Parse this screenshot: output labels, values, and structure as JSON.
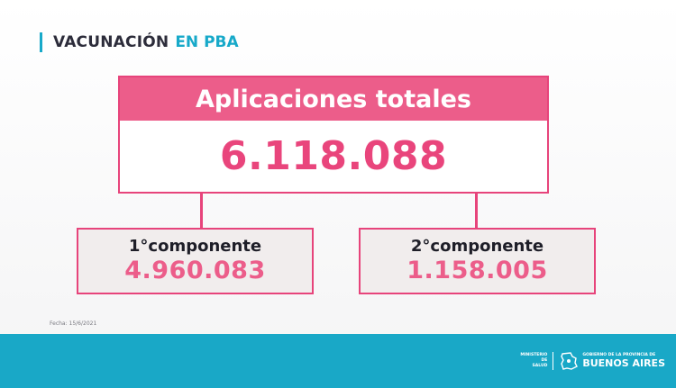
{
  "header": {
    "title_main": "VACUNACIÓN",
    "title_highlight": "EN PBA"
  },
  "total": {
    "label": "Aplicaciones totales",
    "value": "6.118.088"
  },
  "components": [
    {
      "label": "1°componente",
      "value": "4.960.083"
    },
    {
      "label": "2°componente",
      "value": "1.158.005"
    }
  ],
  "note": {
    "date": "Fecha: 15/6/2021"
  },
  "footer": {
    "ministry_line1": "MINISTERIO DE",
    "ministry_line2": "SALUD",
    "gov_top": "GOBIERNO DE LA PROVINCIA DE",
    "gov_name": "BUENOS AIRES",
    "seal_icon": "province-map-icon"
  },
  "colors": {
    "accent_pink": "#ec5d8a",
    "accent_cyan": "#19a8c7"
  }
}
